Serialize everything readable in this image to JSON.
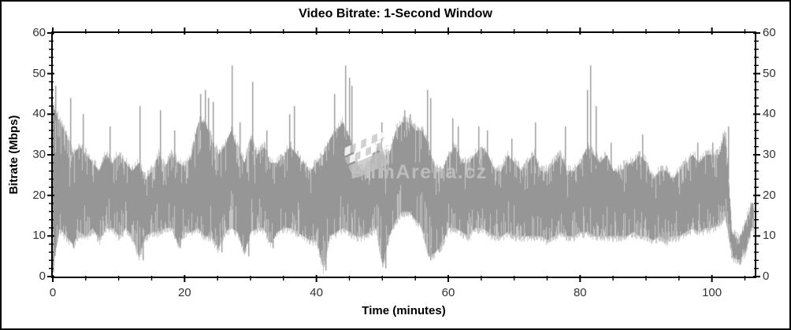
{
  "watermark": {
    "text": "FilmArena.cz",
    "icon": "clapperboard-icon",
    "color": "#c1c1c1"
  },
  "chart_data": {
    "type": "line",
    "title": "Video Bitrate: 1-Second Window",
    "xlabel": "Time (minutes)",
    "ylabel": "Bitrate (Mbps)",
    "xlim": [
      0,
      106.5
    ],
    "ylim": [
      0,
      60
    ],
    "x_major_ticks": [
      0,
      20,
      40,
      60,
      80,
      100
    ],
    "x_minor_step": 5,
    "y_major_ticks": [
      0,
      10,
      20,
      30,
      40,
      50,
      60
    ],
    "y_minor_step": 2,
    "grid": "off",
    "legend": "none",
    "line_color": "#969696",
    "line_color_light": "#c7c7c7",
    "axis_color": "#000000",
    "tick_label_color": "#333333",
    "series_name": "video-bitrate-1s",
    "unit": "Mbps",
    "envelope_x_step_minutes": 1,
    "envelope_low": [
      3,
      12,
      10,
      8,
      11,
      10,
      12,
      9,
      12,
      12,
      10,
      12,
      10,
      5,
      10,
      11,
      11,
      12,
      12,
      8,
      11,
      11,
      12,
      10,
      10,
      7,
      11,
      12,
      11,
      6,
      11,
      12,
      12,
      8,
      11,
      12,
      12,
      11,
      10,
      9,
      9,
      2,
      10,
      11,
      12,
      11,
      10,
      10,
      11,
      12,
      3,
      10,
      14,
      16,
      16,
      14,
      12,
      5,
      6,
      8,
      12,
      12,
      11,
      10,
      12,
      12,
      11,
      10,
      10,
      11,
      10,
      10,
      10,
      10,
      10,
      9,
      10,
      11,
      10,
      10,
      11,
      11,
      10,
      10,
      10,
      10,
      10,
      10,
      11,
      10,
      10,
      9,
      10,
      9,
      10,
      10,
      11,
      12,
      11,
      12,
      12,
      13,
      15,
      5,
      4,
      6,
      12
    ],
    "envelope_high": [
      42,
      38,
      35,
      30,
      32,
      30,
      28,
      26,
      30,
      28,
      30,
      28,
      26,
      28,
      24,
      26,
      30,
      27,
      30,
      28,
      27,
      30,
      38,
      38,
      34,
      30,
      32,
      36,
      32,
      28,
      34,
      30,
      32,
      28,
      28,
      30,
      32,
      30,
      28,
      26,
      28,
      30,
      34,
      36,
      38,
      34,
      28,
      26,
      28,
      32,
      30,
      30,
      36,
      38,
      38,
      36,
      36,
      32,
      26,
      26,
      30,
      32,
      28,
      28,
      30,
      32,
      30,
      26,
      26,
      30,
      28,
      26,
      28,
      30,
      26,
      26,
      28,
      30,
      26,
      26,
      28,
      32,
      30,
      28,
      30,
      26,
      26,
      28,
      28,
      30,
      28,
      24,
      26,
      26,
      24,
      26,
      28,
      30,
      28,
      30,
      30,
      30,
      36,
      11,
      9,
      13,
      18
    ],
    "peaks": [
      [
        0.4,
        47
      ],
      [
        2.6,
        44
      ],
      [
        4.5,
        40
      ],
      [
        8.6,
        37
      ],
      [
        13.1,
        42
      ],
      [
        16.2,
        41
      ],
      [
        18.4,
        36
      ],
      [
        22.3,
        45
      ],
      [
        23.1,
        46
      ],
      [
        23.6,
        44
      ],
      [
        24.3,
        43
      ],
      [
        27.1,
        52
      ],
      [
        28.3,
        38
      ],
      [
        30.3,
        48
      ],
      [
        32.4,
        36
      ],
      [
        35.9,
        40
      ],
      [
        36.6,
        42
      ],
      [
        42.7,
        45
      ],
      [
        44.4,
        52
      ],
      [
        44.9,
        49
      ],
      [
        45.3,
        47
      ],
      [
        49.8,
        38
      ],
      [
        53.3,
        41
      ],
      [
        54.2,
        40
      ],
      [
        56.8,
        46
      ],
      [
        57.3,
        44
      ],
      [
        60.6,
        39
      ],
      [
        61.4,
        37
      ],
      [
        64.5,
        37
      ],
      [
        65.9,
        36
      ],
      [
        69.6,
        34
      ],
      [
        73.2,
        38
      ],
      [
        77.7,
        37
      ],
      [
        81.0,
        46
      ],
      [
        81.5,
        52
      ],
      [
        82.3,
        42
      ],
      [
        84.6,
        33
      ],
      [
        89.4,
        35
      ],
      [
        97.8,
        33
      ],
      [
        100.1,
        33
      ],
      [
        102.4,
        37
      ]
    ],
    "drops": [
      [
        0.05,
        1
      ],
      [
        3.1,
        7
      ],
      [
        13.6,
        4
      ],
      [
        19.2,
        7
      ],
      [
        25.6,
        6
      ],
      [
        29.7,
        5
      ],
      [
        33.4,
        7
      ],
      [
        41.3,
        1.5
      ],
      [
        50.5,
        2
      ],
      [
        57.2,
        4
      ],
      [
        58.6,
        6
      ],
      [
        104.2,
        3
      ]
    ]
  }
}
